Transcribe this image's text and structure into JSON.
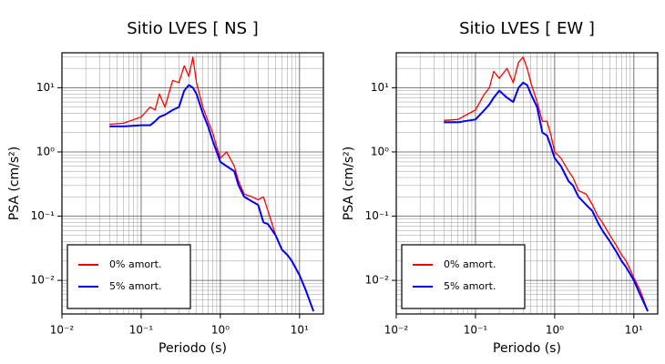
{
  "chart_data": [
    {
      "type": "line",
      "title": "Sitio LVES [ NS ]",
      "x_label": "Periodo (s)",
      "y_label": "PSA (cm/s²)",
      "log_x": true,
      "log_y": true,
      "grid": true,
      "legend": "lower left",
      "xlim": [
        0.01,
        20
      ],
      "ylim": [
        0.003,
        35
      ],
      "xticks": [
        {
          "value": 0.01,
          "label": "10⁻²"
        },
        {
          "value": 0.1,
          "label": "10⁻¹"
        },
        {
          "value": 1,
          "label": "10⁰"
        },
        {
          "value": 10,
          "label": "10¹"
        }
      ],
      "yticks": [
        {
          "value": 0.01,
          "label": "10⁻²"
        },
        {
          "value": 0.1,
          "label": "10⁻¹"
        },
        {
          "value": 1,
          "label": "10⁰"
        },
        {
          "value": 10,
          "label": "10¹"
        }
      ],
      "xminorticks": [
        0.02,
        0.03,
        0.04,
        0.05,
        0.06,
        0.07,
        0.08,
        0.09,
        0.2,
        0.3,
        0.4,
        0.5,
        0.6,
        0.7,
        0.8,
        0.9,
        2,
        3,
        4,
        5,
        6,
        7,
        8,
        9
      ],
      "yminorticks": [
        0.004,
        0.005,
        0.006,
        0.007,
        0.008,
        0.009,
        0.02,
        0.03,
        0.04,
        0.05,
        0.06,
        0.07,
        0.08,
        0.09,
        0.2,
        0.3,
        0.4,
        0.5,
        0.6,
        0.7,
        0.8,
        0.9,
        2,
        3,
        4,
        5,
        6,
        7,
        8,
        9,
        20,
        30
      ],
      "x": [
        0.04,
        0.06,
        0.1,
        0.13,
        0.15,
        0.17,
        0.2,
        0.25,
        0.3,
        0.35,
        0.4,
        0.45,
        0.5,
        0.6,
        0.7,
        0.8,
        0.9,
        1.0,
        1.2,
        1.5,
        1.7,
        2,
        2.5,
        3,
        3.5,
        4,
        5,
        6,
        7,
        8,
        10,
        12,
        15
      ],
      "series": [
        {
          "name": "0% amort.",
          "color": "#ff0000",
          "values": [
            2.7,
            2.8,
            3.5,
            5,
            4.5,
            8,
            5,
            13,
            12,
            22,
            15,
            30,
            12,
            5,
            3,
            2,
            1.2,
            0.8,
            1.0,
            0.6,
            0.35,
            0.22,
            0.2,
            0.18,
            0.2,
            0.12,
            0.05,
            0.03,
            0.025,
            0.02,
            0.012,
            0.007,
            0.0033
          ]
        },
        {
          "name": "5% amort.",
          "color": "#0000ff",
          "values": [
            2.5,
            2.5,
            2.6,
            2.6,
            3.0,
            3.5,
            3.8,
            4.5,
            5,
            9,
            11,
            10,
            8,
            4,
            2.5,
            1.5,
            1.0,
            0.7,
            0.6,
            0.5,
            0.3,
            0.2,
            0.17,
            0.15,
            0.08,
            0.075,
            0.05,
            0.03,
            0.025,
            0.02,
            0.012,
            0.007,
            0.0033
          ]
        }
      ]
    },
    {
      "type": "line",
      "title": "Sitio LVES [ EW ]",
      "x_label": "Periodo (s)",
      "y_label": "PSA (cm/s²)",
      "log_x": true,
      "log_y": true,
      "grid": true,
      "legend": "lower left",
      "xlim": [
        0.01,
        20
      ],
      "ylim": [
        0.003,
        35
      ],
      "xticks": [
        {
          "value": 0.01,
          "label": "10⁻²"
        },
        {
          "value": 0.1,
          "label": "10⁻¹"
        },
        {
          "value": 1,
          "label": "10⁰"
        },
        {
          "value": 10,
          "label": "10¹"
        }
      ],
      "yticks": [
        {
          "value": 0.01,
          "label": "10⁻²"
        },
        {
          "value": 0.1,
          "label": "10⁻¹"
        },
        {
          "value": 1,
          "label": "10⁰"
        },
        {
          "value": 10,
          "label": "10¹"
        }
      ],
      "xminorticks": [
        0.02,
        0.03,
        0.04,
        0.05,
        0.06,
        0.07,
        0.08,
        0.09,
        0.2,
        0.3,
        0.4,
        0.5,
        0.6,
        0.7,
        0.8,
        0.9,
        2,
        3,
        4,
        5,
        6,
        7,
        8,
        9
      ],
      "yminorticks": [
        0.004,
        0.005,
        0.006,
        0.007,
        0.008,
        0.009,
        0.02,
        0.03,
        0.04,
        0.05,
        0.06,
        0.07,
        0.08,
        0.09,
        0.2,
        0.3,
        0.4,
        0.5,
        0.6,
        0.7,
        0.8,
        0.9,
        2,
        3,
        4,
        5,
        6,
        7,
        8,
        9,
        20,
        30
      ],
      "x": [
        0.04,
        0.06,
        0.1,
        0.13,
        0.15,
        0.17,
        0.2,
        0.25,
        0.3,
        0.35,
        0.4,
        0.45,
        0.5,
        0.6,
        0.7,
        0.8,
        0.9,
        1.0,
        1.2,
        1.5,
        1.7,
        2,
        2.5,
        3,
        3.5,
        4,
        5,
        6,
        7,
        8,
        10,
        12,
        15
      ],
      "series": [
        {
          "name": "0% amort.",
          "color": "#ff0000",
          "values": [
            3.1,
            3.2,
            4.5,
            8,
            10,
            18,
            14,
            20,
            12,
            25,
            30,
            20,
            12,
            6,
            3,
            3,
            1.8,
            1.0,
            0.8,
            0.5,
            0.4,
            0.25,
            0.22,
            0.15,
            0.1,
            0.08,
            0.05,
            0.035,
            0.025,
            0.02,
            0.011,
            0.007,
            0.0033
          ]
        },
        {
          "name": "5% amort.",
          "color": "#0000ff",
          "values": [
            2.9,
            2.9,
            3.2,
            4.5,
            5.5,
            7,
            9,
            7,
            6,
            10,
            12,
            11,
            8,
            5,
            2,
            1.8,
            1.2,
            0.8,
            0.6,
            0.35,
            0.3,
            0.2,
            0.15,
            0.12,
            0.08,
            0.06,
            0.04,
            0.028,
            0.02,
            0.016,
            0.01,
            0.006,
            0.0033
          ]
        }
      ]
    }
  ]
}
